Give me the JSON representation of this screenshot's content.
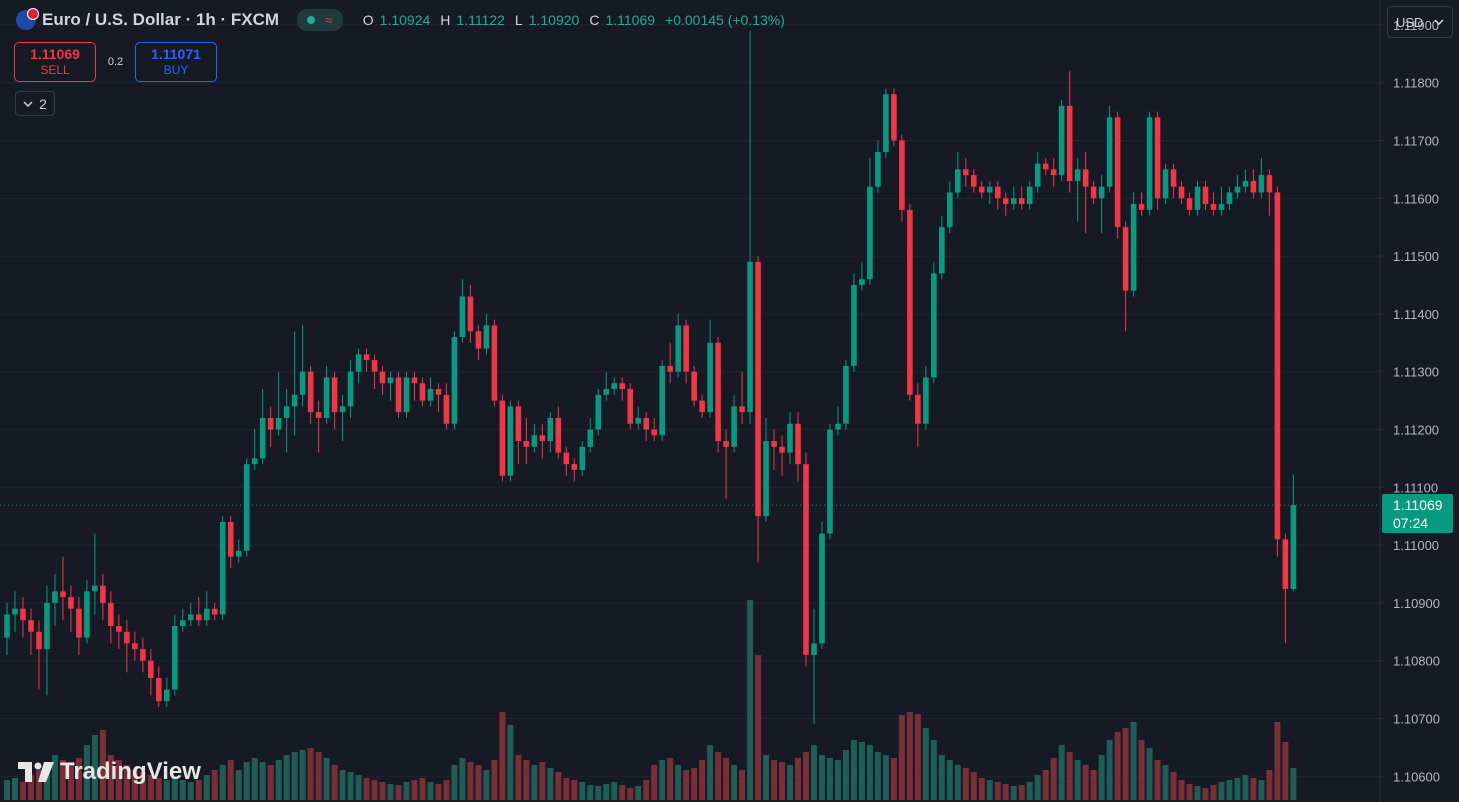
{
  "header": {
    "symbol": "Euro / U.S. Dollar · 1h · FXCM",
    "o_key": "O",
    "open": "1.10924",
    "h_key": "H",
    "high": "1.11122",
    "l_key": "L",
    "low": "1.10920",
    "c_key": "C",
    "close": "1.11069",
    "change": "+0.00145 (+0.13%)"
  },
  "trade": {
    "sell_price": "1.11069",
    "sell_label": "SELL",
    "spread": "0.2",
    "buy_price": "1.11071",
    "buy_label": "BUY"
  },
  "indicators_count": "2",
  "currency": "USD",
  "logo": "TradingView",
  "price_tag": {
    "price": "1.11069",
    "countdown": "07:24"
  },
  "chart_data": {
    "type": "candlestick",
    "up_color": "#089981",
    "down_color": "#f23645",
    "volume_up_color": "#1f5d57",
    "volume_down_color": "#7a2f37",
    "grid": true,
    "ylim": [
      1.10559,
      1.11943
    ],
    "yticks": [
      {
        "value": 1.119,
        "label": "1.11900"
      },
      {
        "value": 1.118,
        "label": "1.11800"
      },
      {
        "value": 1.117,
        "label": "1.11700"
      },
      {
        "value": 1.116,
        "label": "1.11600"
      },
      {
        "value": 1.115,
        "label": "1.11500"
      },
      {
        "value": 1.114,
        "label": "1.11400"
      },
      {
        "value": 1.113,
        "label": "1.11300"
      },
      {
        "value": 1.112,
        "label": "1.11200"
      },
      {
        "value": 1.111,
        "label": "1.11100"
      },
      {
        "value": 1.11,
        "label": "1.11000"
      },
      {
        "value": 1.109,
        "label": "1.10900"
      },
      {
        "value": 1.108,
        "label": "1.10800"
      },
      {
        "value": 1.107,
        "label": "1.10700"
      },
      {
        "value": 1.106,
        "label": "1.10600"
      }
    ],
    "vlim": [
      0,
      200
    ],
    "series": {
      "open": [
        1.1084,
        1.1088,
        1.1089,
        1.1087,
        1.1085,
        1.1082,
        1.109,
        1.1092,
        1.1091,
        1.1089,
        1.1084,
        1.1092,
        1.1093,
        1.109,
        1.1086,
        1.1085,
        1.1083,
        1.1082,
        1.108,
        1.1077,
        1.1073,
        1.1075,
        1.1086,
        1.1087,
        1.1088,
        1.1087,
        1.1089,
        1.1088,
        1.1104,
        1.1098,
        1.1099,
        1.1114,
        1.1115,
        1.1122,
        1.112,
        1.1122,
        1.1124,
        1.1126,
        1.113,
        1.1123,
        1.1122,
        1.1129,
        1.1123,
        1.1124,
        1.113,
        1.1133,
        1.1132,
        1.113,
        1.1128,
        1.1129,
        1.1123,
        1.1129,
        1.1128,
        1.1125,
        1.1127,
        1.1126,
        1.1121,
        1.1136,
        1.1143,
        1.1137,
        1.1134,
        1.1138,
        1.1125,
        1.1112,
        1.1124,
        1.1118,
        1.1117,
        1.1119,
        1.1118,
        1.1122,
        1.1116,
        1.1114,
        1.1113,
        1.1117,
        1.112,
        1.1126,
        1.1127,
        1.1128,
        1.1127,
        1.1121,
        1.1122,
        1.112,
        1.1119,
        1.1131,
        1.113,
        1.1138,
        1.113,
        1.1125,
        1.1123,
        1.1135,
        1.1118,
        1.1117,
        1.1124,
        1.1123,
        1.1149,
        1.1105,
        1.1118,
        1.1117,
        1.1116,
        1.1121,
        1.1114,
        1.1081,
        1.1083,
        1.1102,
        1.112,
        1.1121,
        1.1131,
        1.1145,
        1.1146,
        1.1162,
        1.1168,
        1.1178,
        1.117,
        1.1158,
        1.1126,
        1.1121,
        1.1129,
        1.1147,
        1.1155,
        1.1161,
        1.1165,
        1.1164,
        1.1162,
        1.1161,
        1.1162,
        1.116,
        1.1159,
        1.116,
        1.1159,
        1.1162,
        1.1166,
        1.1165,
        1.1164,
        1.1176,
        1.1163,
        1.1165,
        1.1162,
        1.116,
        1.1162,
        1.1174,
        1.1155,
        1.1144,
        1.1159,
        1.1158,
        1.1174,
        1.116,
        1.1165,
        1.1162,
        1.116,
        1.1158,
        1.1162,
        1.1159,
        1.1158,
        1.1159,
        1.1161,
        1.1162,
        1.1163,
        1.1161,
        1.1164,
        1.1161,
        1.1101,
        1.10924
      ],
      "high": [
        1.109,
        1.1092,
        1.1091,
        1.1089,
        1.1087,
        1.1093,
        1.1095,
        1.1098,
        1.1093,
        1.1091,
        1.1094,
        1.1102,
        1.1095,
        1.1092,
        1.1088,
        1.1087,
        1.1085,
        1.1084,
        1.1082,
        1.1079,
        1.1077,
        1.1088,
        1.1089,
        1.109,
        1.1091,
        1.1092,
        1.109,
        1.1105,
        1.1105,
        1.1101,
        1.1115,
        1.112,
        1.1127,
        1.1124,
        1.113,
        1.1127,
        1.1137,
        1.1138,
        1.1131,
        1.1125,
        1.1131,
        1.113,
        1.1126,
        1.1132,
        1.1134,
        1.1134,
        1.1133,
        1.1131,
        1.113,
        1.113,
        1.113,
        1.113,
        1.1129,
        1.1129,
        1.1128,
        1.1128,
        1.1137,
        1.1146,
        1.1145,
        1.1138,
        1.114,
        1.1139,
        1.1126,
        1.1125,
        1.1125,
        1.1122,
        1.1121,
        1.1121,
        1.1123,
        1.1124,
        1.1117,
        1.1115,
        1.1118,
        1.1122,
        1.1127,
        1.113,
        1.1129,
        1.1129,
        1.1128,
        1.1124,
        1.1123,
        1.1122,
        1.1132,
        1.1135,
        1.114,
        1.1139,
        1.1131,
        1.1126,
        1.1139,
        1.1136,
        1.112,
        1.1126,
        1.113,
        1.1189,
        1.115,
        1.1122,
        1.112,
        1.1119,
        1.1123,
        1.1123,
        1.1116,
        1.1089,
        1.1104,
        1.1121,
        1.1124,
        1.1132,
        1.1147,
        1.1149,
        1.1167,
        1.117,
        1.1179,
        1.1179,
        1.1171,
        1.1159,
        1.1128,
        1.1131,
        1.1149,
        1.1157,
        1.1163,
        1.1168,
        1.1167,
        1.1165,
        1.1163,
        1.1163,
        1.1163,
        1.1161,
        1.1162,
        1.1162,
        1.1163,
        1.1168,
        1.1167,
        1.1167,
        1.1177,
        1.1182,
        1.1167,
        1.1168,
        1.1163,
        1.1164,
        1.1176,
        1.1175,
        1.1156,
        1.1161,
        1.1161,
        1.1175,
        1.1175,
        1.1166,
        1.1166,
        1.1163,
        1.1161,
        1.1163,
        1.1163,
        1.1161,
        1.1162,
        1.1162,
        1.1164,
        1.1165,
        1.1165,
        1.1167,
        1.1165,
        1.1162,
        1.1102,
        1.11122
      ],
      "low": [
        1.1081,
        1.1085,
        1.1084,
        1.1081,
        1.1075,
        1.1074,
        1.1086,
        1.1087,
        1.1085,
        1.1081,
        1.1083,
        1.1088,
        1.1087,
        1.1083,
        1.1082,
        1.1078,
        1.108,
        1.1078,
        1.1074,
        1.1072,
        1.1072,
        1.1074,
        1.1085,
        1.1086,
        1.1086,
        1.1086,
        1.1087,
        1.1087,
        1.1096,
        1.1097,
        1.1098,
        1.1113,
        1.1114,
        1.1117,
        1.1119,
        1.1116,
        1.1119,
        1.1124,
        1.1121,
        1.1116,
        1.1121,
        1.112,
        1.1118,
        1.1122,
        1.1128,
        1.113,
        1.1127,
        1.1126,
        1.1125,
        1.1122,
        1.1122,
        1.1125,
        1.1124,
        1.1124,
        1.1123,
        1.112,
        1.112,
        1.1135,
        1.1135,
        1.1132,
        1.1133,
        1.1124,
        1.1111,
        1.1111,
        1.1114,
        1.1114,
        1.1116,
        1.1115,
        1.1116,
        1.1115,
        1.1112,
        1.1111,
        1.1112,
        1.1116,
        1.1119,
        1.1125,
        1.1126,
        1.1125,
        1.112,
        1.112,
        1.1118,
        1.1118,
        1.1118,
        1.1128,
        1.1129,
        1.1128,
        1.1124,
        1.1122,
        1.1122,
        1.1116,
        1.1108,
        1.1116,
        1.1121,
        1.1121,
        1.1097,
        1.1104,
        1.1113,
        1.1112,
        1.1114,
        1.1111,
        1.1079,
        1.1069,
        1.1082,
        1.1101,
        1.1119,
        1.112,
        1.113,
        1.1144,
        1.1145,
        1.1161,
        1.1167,
        1.1169,
        1.1156,
        1.1125,
        1.1117,
        1.112,
        1.1128,
        1.1146,
        1.1154,
        1.116,
        1.1162,
        1.1161,
        1.116,
        1.1159,
        1.1158,
        1.1157,
        1.1158,
        1.1158,
        1.1158,
        1.1161,
        1.1164,
        1.1162,
        1.1163,
        1.1161,
        1.1156,
        1.1154,
        1.1159,
        1.1154,
        1.1161,
        1.1153,
        1.1137,
        1.1143,
        1.1157,
        1.1157,
        1.1158,
        1.1159,
        1.116,
        1.1159,
        1.1157,
        1.1157,
        1.1158,
        1.1157,
        1.1157,
        1.1158,
        1.116,
        1.1161,
        1.116,
        1.116,
        1.1157,
        1.1098,
        1.1083,
        1.1092
      ],
      "close": [
        1.1088,
        1.1089,
        1.1087,
        1.1085,
        1.1082,
        1.109,
        1.1092,
        1.1091,
        1.1089,
        1.1084,
        1.1092,
        1.1093,
        1.109,
        1.1086,
        1.1085,
        1.1083,
        1.1082,
        1.108,
        1.1077,
        1.1073,
        1.1075,
        1.1086,
        1.1087,
        1.1088,
        1.1087,
        1.1089,
        1.1088,
        1.1104,
        1.1098,
        1.1099,
        1.1114,
        1.1115,
        1.1122,
        1.112,
        1.1122,
        1.1124,
        1.1126,
        1.113,
        1.1123,
        1.1122,
        1.1129,
        1.1123,
        1.1124,
        1.113,
        1.1133,
        1.1132,
        1.113,
        1.1128,
        1.1129,
        1.1123,
        1.1129,
        1.1128,
        1.1125,
        1.1127,
        1.1126,
        1.1121,
        1.1136,
        1.1143,
        1.1137,
        1.1134,
        1.1138,
        1.1125,
        1.1112,
        1.1124,
        1.1118,
        1.1117,
        1.1119,
        1.1118,
        1.1122,
        1.1116,
        1.1114,
        1.1113,
        1.1117,
        1.112,
        1.1126,
        1.1127,
        1.1128,
        1.1127,
        1.1121,
        1.1122,
        1.112,
        1.1119,
        1.1131,
        1.113,
        1.1138,
        1.113,
        1.1125,
        1.1123,
        1.1135,
        1.1118,
        1.1117,
        1.1124,
        1.1123,
        1.1149,
        1.1105,
        1.1118,
        1.1117,
        1.1116,
        1.1121,
        1.1114,
        1.1081,
        1.1083,
        1.1102,
        1.112,
        1.1121,
        1.1131,
        1.1145,
        1.1146,
        1.1162,
        1.1168,
        1.1178,
        1.117,
        1.1158,
        1.1126,
        1.1121,
        1.1129,
        1.1147,
        1.1155,
        1.1161,
        1.1165,
        1.1164,
        1.1162,
        1.1161,
        1.1162,
        1.116,
        1.1159,
        1.116,
        1.1159,
        1.1162,
        1.1166,
        1.1165,
        1.1164,
        1.1176,
        1.1163,
        1.1165,
        1.1162,
        1.116,
        1.1162,
        1.1174,
        1.1155,
        1.1144,
        1.1159,
        1.1158,
        1.1174,
        1.116,
        1.1165,
        1.1162,
        1.116,
        1.1158,
        1.1162,
        1.1159,
        1.1158,
        1.1159,
        1.1161,
        1.1162,
        1.1163,
        1.1161,
        1.1164,
        1.1161,
        1.1101,
        1.10924,
        1.11069
      ],
      "volume": [
        20,
        22,
        18,
        25,
        30,
        35,
        45,
        40,
        38,
        42,
        55,
        65,
        70,
        45,
        40,
        35,
        30,
        28,
        25,
        22,
        20,
        22,
        20,
        18,
        20,
        25,
        30,
        35,
        40,
        30,
        38,
        42,
        38,
        35,
        40,
        45,
        48,
        50,
        52,
        48,
        42,
        35,
        30,
        28,
        25,
        22,
        20,
        18,
        16,
        15,
        18,
        20,
        22,
        18,
        16,
        20,
        35,
        42,
        38,
        35,
        30,
        40,
        88,
        75,
        45,
        40,
        35,
        38,
        32,
        28,
        22,
        20,
        18,
        15,
        14,
        16,
        18,
        15,
        12,
        14,
        20,
        35,
        40,
        42,
        35,
        30,
        32,
        40,
        55,
        48,
        42,
        35,
        30,
        200,
        145,
        45,
        40,
        38,
        35,
        42,
        48,
        55,
        45,
        42,
        40,
        50,
        60,
        58,
        55,
        48,
        45,
        42,
        85,
        88,
        86,
        72,
        60,
        45,
        40,
        35,
        32,
        28,
        22,
        20,
        18,
        16,
        14,
        15,
        18,
        25,
        30,
        42,
        55,
        48,
        40,
        35,
        30,
        45,
        60,
        68,
        72,
        78,
        60,
        52,
        40,
        35,
        28,
        20,
        16,
        14,
        12,
        15,
        18,
        20,
        22,
        25,
        22,
        20,
        30,
        78,
        58,
        32
      ]
    }
  }
}
